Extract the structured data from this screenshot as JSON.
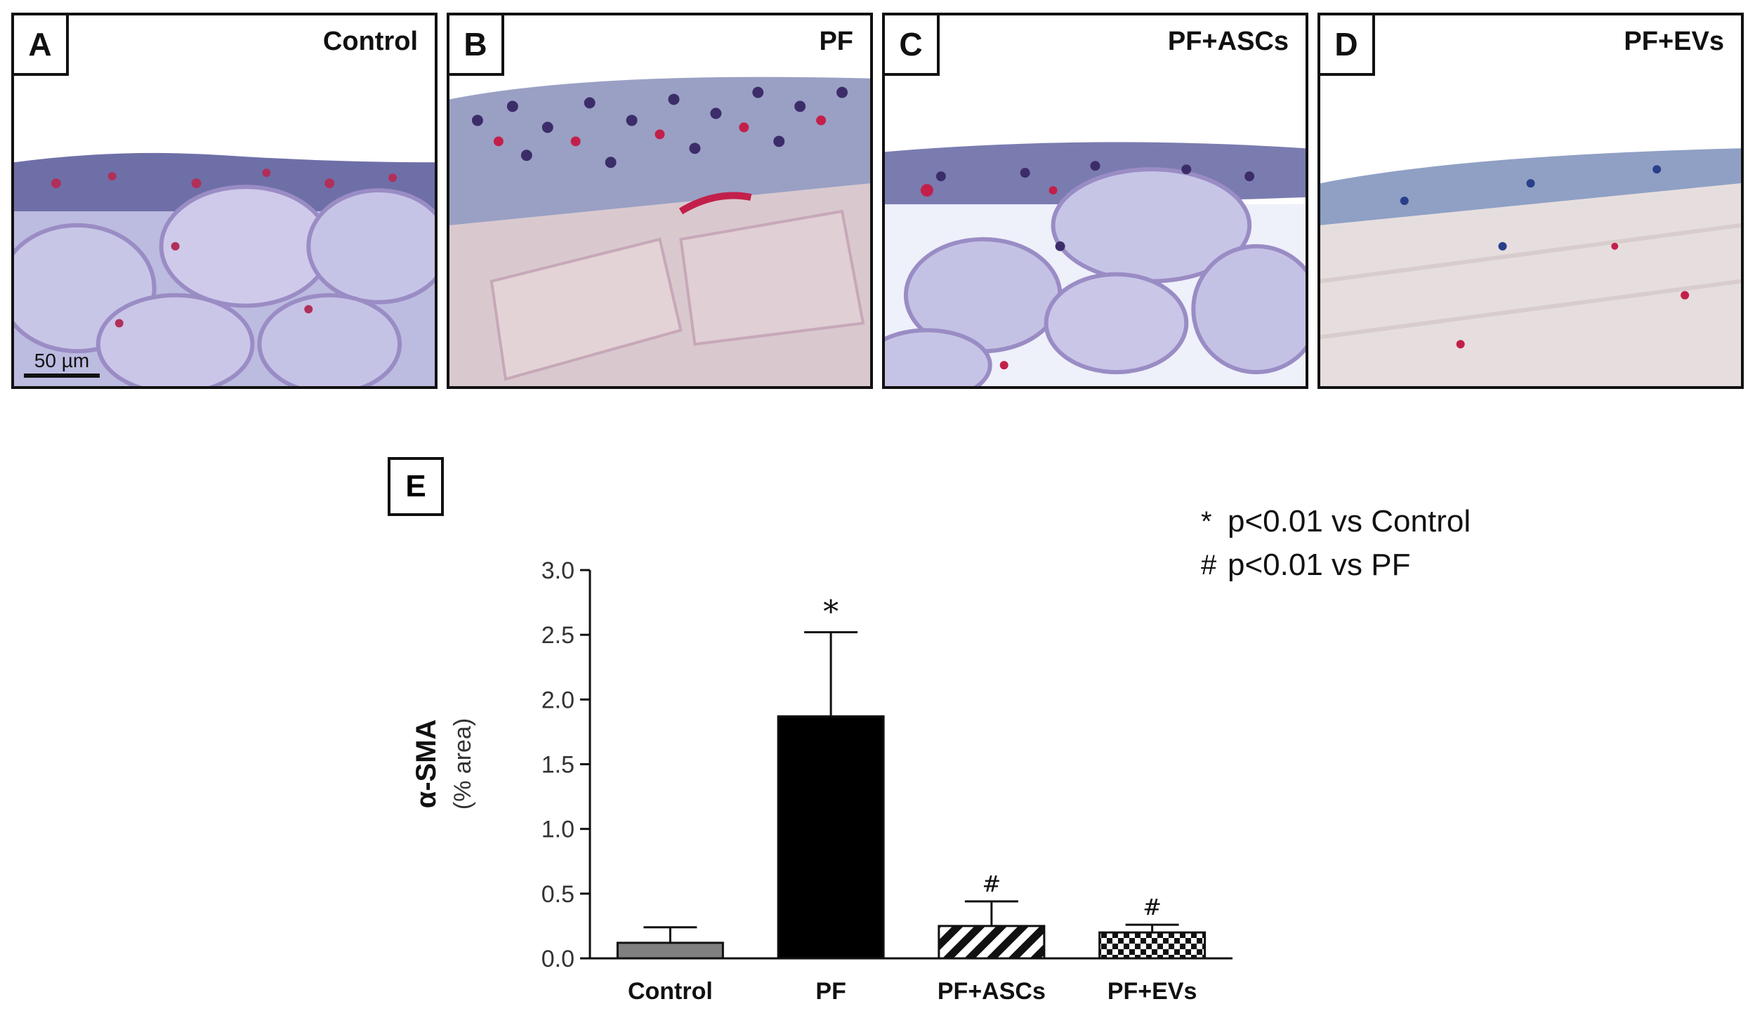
{
  "panels": [
    {
      "letter": "A",
      "title": "Control"
    },
    {
      "letter": "B",
      "title": "PF"
    },
    {
      "letter": "C",
      "title": "PF+ASCs"
    },
    {
      "letter": "D",
      "title": "PF+EVs"
    }
  ],
  "scale_bar": "50 µm",
  "chart_panel_label": "E",
  "legend": [
    {
      "symbol": "*",
      "text": "p<0.01 vs Control"
    },
    {
      "symbol": "#",
      "text": "p<0.01 vs PF"
    }
  ],
  "colors": {
    "control": "#808080",
    "pf": "#000000",
    "axis": "#111111"
  },
  "chart_data": {
    "type": "bar",
    "categories": [
      "Control",
      "PF",
      "PF+ASCs",
      "PF+EVs"
    ],
    "values": [
      0.12,
      1.87,
      0.25,
      0.2
    ],
    "errors": [
      0.12,
      0.65,
      0.19,
      0.06
    ],
    "annotations": [
      "",
      "*",
      "#",
      "#"
    ],
    "fills": [
      "solid-gray",
      "solid-black",
      "diagonal-hatch",
      "checkerboard"
    ],
    "ylabel": "α-SMA",
    "ylabel_sub": "(% area)",
    "ylim": [
      0,
      3.0
    ],
    "yticks": [
      "0.0",
      "0.5",
      "1.0",
      "1.5",
      "2.0",
      "2.5",
      "3.0"
    ],
    "grid": false
  }
}
